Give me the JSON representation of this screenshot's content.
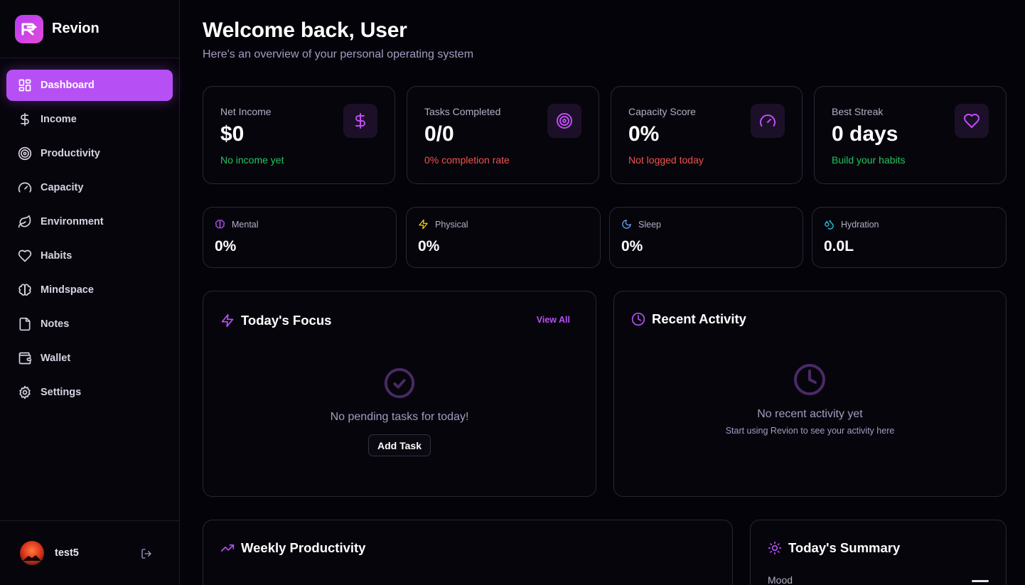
{
  "brand": {
    "name": "Revion"
  },
  "sidebar": {
    "items": [
      {
        "label": "Dashboard",
        "icon": "dashboard-icon",
        "active": true
      },
      {
        "label": "Income",
        "icon": "dollar-icon"
      },
      {
        "label": "Productivity",
        "icon": "target-icon"
      },
      {
        "label": "Capacity",
        "icon": "gauge-icon"
      },
      {
        "label": "Environment",
        "icon": "leaf-icon"
      },
      {
        "label": "Habits",
        "icon": "heart-icon"
      },
      {
        "label": "Mindspace",
        "icon": "brain-icon"
      },
      {
        "label": "Notes",
        "icon": "file-icon"
      },
      {
        "label": "Wallet",
        "icon": "wallet-icon"
      },
      {
        "label": "Settings",
        "icon": "gear-icon"
      }
    ],
    "user": {
      "name": "test5"
    }
  },
  "header": {
    "title": "Welcome back, User",
    "subtitle": "Here's an overview of your personal operating system"
  },
  "stats": [
    {
      "label": "Net Income",
      "value": "$0",
      "note": "No income yet",
      "note_color": "#22c55e",
      "icon": "dollar-icon"
    },
    {
      "label": "Tasks Completed",
      "value": "0/0",
      "note": "0% completion rate",
      "note_color": "#f0524d",
      "icon": "target-icon"
    },
    {
      "label": "Capacity Score",
      "value": "0%",
      "note": "Not logged today",
      "note_color": "#f0524d",
      "icon": "gauge-icon"
    },
    {
      "label": "Best Streak",
      "value": "0 days",
      "note": "Build your habits",
      "note_color": "#22c55e",
      "icon": "heart-icon"
    }
  ],
  "metrics": [
    {
      "label": "Mental",
      "value": "0%",
      "icon": "brain-icon",
      "color": "#b650f5"
    },
    {
      "label": "Physical",
      "value": "0%",
      "icon": "zap-icon",
      "color": "#facc15"
    },
    {
      "label": "Sleep",
      "value": "0%",
      "icon": "moon-icon",
      "color": "#60a5fa"
    },
    {
      "label": "Hydration",
      "value": "0.0L",
      "icon": "droplets-icon",
      "color": "#22d3ee"
    }
  ],
  "focus": {
    "title": "Today's Focus",
    "view_all": "View All",
    "empty": "No pending tasks for today!",
    "add_task": "Add Task"
  },
  "activity": {
    "title": "Recent Activity",
    "empty": "No recent activity yet",
    "empty_sub": "Start using Revion to see your activity here"
  },
  "weekly": {
    "title": "Weekly Productivity"
  },
  "summary": {
    "title": "Today's Summary",
    "mood_label": "Mood"
  },
  "colors": {
    "accent": "#b650f5",
    "background": "#05030a",
    "card_border": "#2a2535"
  }
}
